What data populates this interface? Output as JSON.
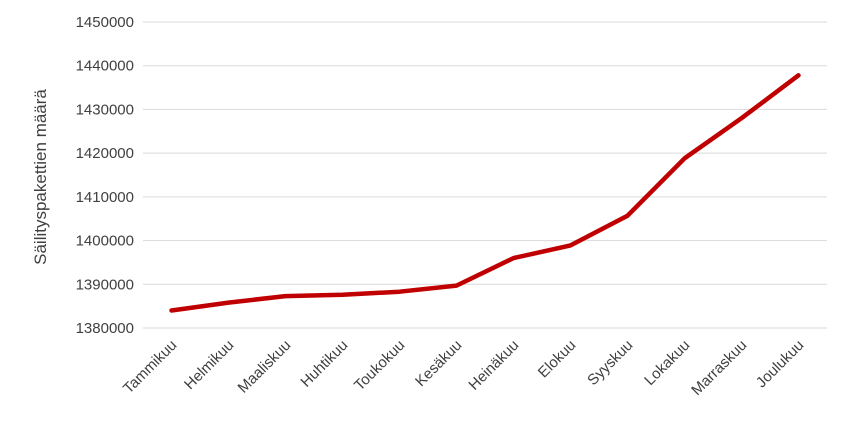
{
  "chart_data": {
    "type": "line",
    "title": "",
    "xlabel": "",
    "ylabel": "Säilityspakettien määrä",
    "ylim": [
      1380000,
      1450000
    ],
    "yticks": [
      1380000,
      1390000,
      1400000,
      1410000,
      1420000,
      1430000,
      1440000,
      1450000
    ],
    "ytick_labels": [
      "1380000",
      "1390000",
      "1400000",
      "1410000",
      "1420000",
      "1430000",
      "1440000",
      "1450000"
    ],
    "grid": true,
    "legend": "none",
    "categories": [
      "Tammikuu",
      "Helmikuu",
      "Maaliskuu",
      "Huhtikuu",
      "Toukokuu",
      "Kesäkuu",
      "Heinäkuu",
      "Elokuu",
      "Syyskuu",
      "Lokakuu",
      "Marraskuu",
      "Joulukuu"
    ],
    "series": [
      {
        "color": "#c00000",
        "values": [
          1384000,
          1385800,
          1387300,
          1387600,
          1388300,
          1389700,
          1396000,
          1398900,
          1405700,
          1418800,
          1428000,
          1437800
        ]
      }
    ]
  }
}
